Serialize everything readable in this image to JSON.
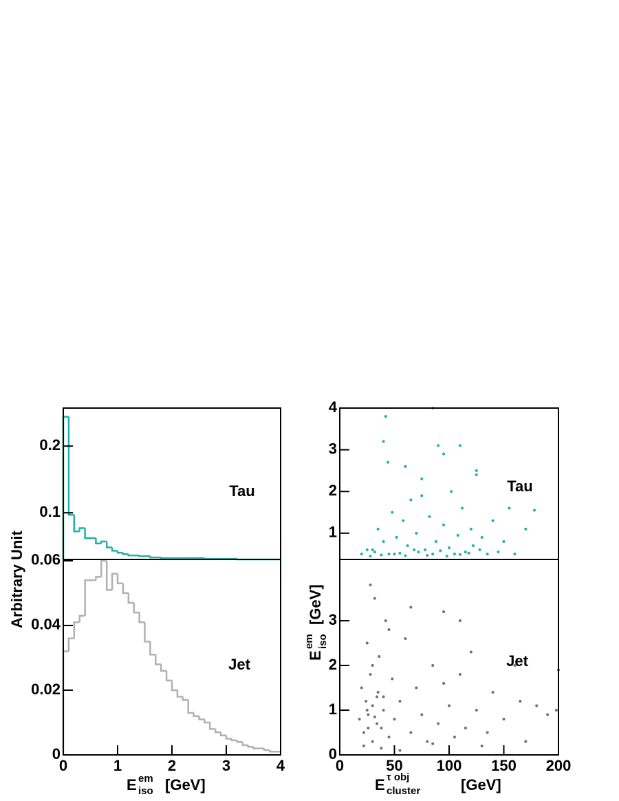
{
  "chart_data": [
    {
      "type": "histogram",
      "bins": [
        0,
        0.1,
        0.2,
        0.3,
        0.4,
        0.5,
        0.6,
        0.7,
        0.8,
        0.9,
        1.0,
        1.1,
        1.2,
        1.3,
        1.4,
        1.5,
        1.6,
        1.7,
        1.8,
        1.9,
        2.0,
        2.1,
        2.2,
        2.3,
        2.4,
        2.5,
        2.6,
        2.7,
        2.8,
        2.9,
        3.0,
        3.1,
        3.2,
        3.3,
        3.4,
        3.5,
        3.6,
        3.7,
        3.8,
        3.9,
        4.0
      ],
      "values": [
        0.244,
        0.097,
        0.072,
        0.077,
        0.062,
        0.062,
        0.054,
        0.057,
        0.048,
        0.043,
        0.04,
        0.038,
        0.036,
        0.036,
        0.035,
        0.035,
        0.033,
        0.033,
        0.032,
        0.032,
        0.032,
        0.032,
        0.032,
        0.032,
        0.032,
        0.032,
        0.031,
        0.031,
        0.031,
        0.031,
        0.031,
        0.031,
        0.03,
        0.03,
        0.03,
        0.03,
        0.03,
        0.03,
        0.03,
        0.03
      ],
      "color": "#1fb0a8",
      "xlim": [
        0,
        4
      ],
      "ylim": [
        0.03,
        0.257
      ],
      "yticks": [
        0.1,
        0.2
      ],
      "annotation": "Tau",
      "ylabel": "Arbitrary Unit"
    },
    {
      "type": "histogram",
      "bins": [
        0,
        0.1,
        0.2,
        0.3,
        0.4,
        0.5,
        0.6,
        0.7,
        0.8,
        0.9,
        1.0,
        1.1,
        1.2,
        1.3,
        1.4,
        1.5,
        1.6,
        1.7,
        1.8,
        1.9,
        2.0,
        2.1,
        2.2,
        2.3,
        2.4,
        2.5,
        2.6,
        2.7,
        2.8,
        2.9,
        3.0,
        3.1,
        3.2,
        3.3,
        3.4,
        3.5,
        3.6,
        3.7,
        3.8,
        3.9,
        4.0
      ],
      "values": [
        0.032,
        0.036,
        0.041,
        0.043,
        0.054,
        0.054,
        0.055,
        0.06,
        0.051,
        0.056,
        0.053,
        0.05,
        0.047,
        0.044,
        0.041,
        0.035,
        0.031,
        0.028,
        0.026,
        0.023,
        0.02,
        0.018,
        0.017,
        0.013,
        0.012,
        0.011,
        0.01,
        0.008,
        0.007,
        0.006,
        0.005,
        0.0045,
        0.004,
        0.003,
        0.0025,
        0.002,
        0.002,
        0.0015,
        0.001,
        0.001
      ],
      "color": "#b0b0b0",
      "xlim": [
        0,
        4
      ],
      "xticks": [
        0,
        1,
        2,
        3,
        4
      ],
      "ylim": [
        0,
        0.0604
      ],
      "yticks": [
        0,
        0.02,
        0.04,
        0.06
      ],
      "annotation": "Jet",
      "xlabel": {
        "base": "E",
        "sup": "em",
        "sub": "iso",
        "unit": "[GeV]"
      }
    },
    {
      "type": "scatter",
      "x": [
        20,
        25,
        28,
        30,
        32,
        35,
        38,
        40,
        42,
        45,
        48,
        50,
        52,
        55,
        58,
        60,
        62,
        65,
        68,
        70,
        72,
        75,
        78,
        80,
        82,
        85,
        88,
        90,
        92,
        95,
        98,
        100,
        102,
        105,
        108,
        110,
        112,
        115,
        118,
        120,
        122,
        125,
        128,
        130,
        135,
        140,
        145,
        150,
        155,
        160,
        170,
        178,
        40,
        44,
        60,
        85,
        110,
        125,
        75,
        95
      ],
      "y": [
        0.5,
        0.6,
        0.45,
        0.6,
        0.55,
        1.1,
        0.48,
        0.8,
        3.8,
        0.5,
        1.5,
        0.5,
        0.9,
        0.52,
        1.3,
        0.46,
        0.7,
        1.8,
        0.6,
        1.0,
        0.55,
        2.3,
        0.6,
        0.47,
        1.4,
        0.5,
        0.8,
        3.1,
        0.58,
        1.2,
        0.45,
        0.65,
        2.0,
        0.5,
        0.95,
        0.49,
        1.6,
        0.55,
        0.52,
        1.1,
        0.7,
        2.4,
        0.6,
        0.9,
        0.5,
        1.3,
        0.55,
        0.8,
        1.6,
        0.5,
        1.1,
        1.55,
        3.2,
        2.7,
        2.6,
        4.0,
        3.1,
        2.5,
        1.9,
        2.9
      ],
      "color": "#1fb0a8",
      "xlim": [
        0,
        200
      ],
      "ylim": [
        0.37,
        4
      ],
      "yticks": [
        1,
        2,
        3,
        4
      ],
      "annotation": "Tau",
      "ylabel": {
        "base": "E",
        "sup": "em",
        "sub": "iso",
        "unit": "[GeV]"
      }
    },
    {
      "type": "scatter",
      "x": [
        18,
        20,
        22,
        24,
        25,
        26,
        28,
        30,
        30,
        32,
        34,
        35,
        36,
        38,
        40,
        42,
        45,
        48,
        50,
        55,
        60,
        65,
        70,
        75,
        80,
        85,
        90,
        95,
        100,
        105,
        110,
        115,
        120,
        125,
        130,
        140,
        150,
        160,
        170,
        180,
        190,
        200,
        22,
        26,
        30,
        34,
        28,
        38,
        45,
        55,
        65,
        85,
        95,
        110,
        135,
        165,
        25,
        32,
        40,
        198
      ],
      "y": [
        0.8,
        1.5,
        0.5,
        1.2,
        2.5,
        0.9,
        1.8,
        0.3,
        1.1,
        3.5,
        0.7,
        1.4,
        2.2,
        0.6,
        1.0,
        3.0,
        0.4,
        1.7,
        0.8,
        1.2,
        2.6,
        0.5,
        1.5,
        0.9,
        0.3,
        2.0,
        0.7,
        3.2,
        1.1,
        0.4,
        1.8,
        0.6,
        2.3,
        1.0,
        0.2,
        1.4,
        0.8,
        2.0,
        0.3,
        1.1,
        0.9,
        1.9,
        0.2,
        0.6,
        2.0,
        1.3,
        3.8,
        0.15,
        2.8,
        0.1,
        3.3,
        0.25,
        1.6,
        3.0,
        0.5,
        1.2,
        1.0,
        0.85,
        1.3,
        1.0
      ],
      "color": "#707070",
      "xlim": [
        0,
        200
      ],
      "xticks": [
        0,
        50,
        100,
        150,
        200
      ],
      "ylim": [
        0,
        4.37
      ],
      "yticks": [
        0,
        1,
        2,
        3
      ],
      "annotation": "Jet",
      "xlabel": {
        "base": "E",
        "sup": "τ obj",
        "sub": "cluster",
        "unit": "[GeV]"
      }
    }
  ]
}
